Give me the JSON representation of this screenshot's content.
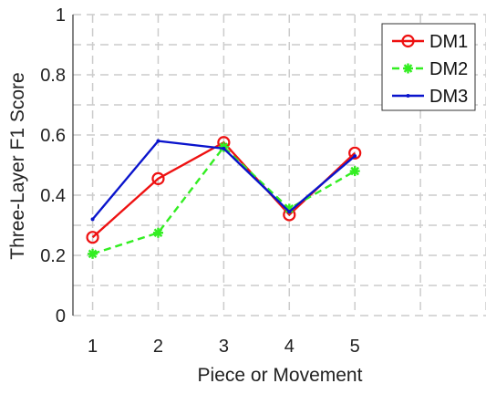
{
  "chart_data": {
    "type": "line",
    "xlabel": "Piece or Movement",
    "ylabel": "Three-Layer F1 Score",
    "x": [
      1,
      2,
      3,
      4,
      5
    ],
    "xlim": [
      0.7,
      7
    ],
    "ylim": [
      0,
      1
    ],
    "xticks": [
      "1",
      "2",
      "3",
      "4",
      "5"
    ],
    "yticks": [
      "0",
      "0.2",
      "0.4",
      "0.6",
      "0.8",
      "1"
    ],
    "grid": true,
    "legend_position": "top-right",
    "series": [
      {
        "name": "DM1",
        "values": [
          0.26,
          0.455,
          0.575,
          0.335,
          0.54
        ],
        "color": "#ee1111",
        "line": "solid",
        "marker": "circle"
      },
      {
        "name": "DM2",
        "values": [
          0.205,
          0.275,
          0.56,
          0.355,
          0.48
        ],
        "color": "#33ee22",
        "line": "dashed",
        "marker": "asterisk"
      },
      {
        "name": "DM3",
        "values": [
          0.32,
          0.58,
          0.555,
          0.345,
          0.53
        ],
        "color": "#0a14cc",
        "line": "solid",
        "marker": "point"
      }
    ]
  }
}
